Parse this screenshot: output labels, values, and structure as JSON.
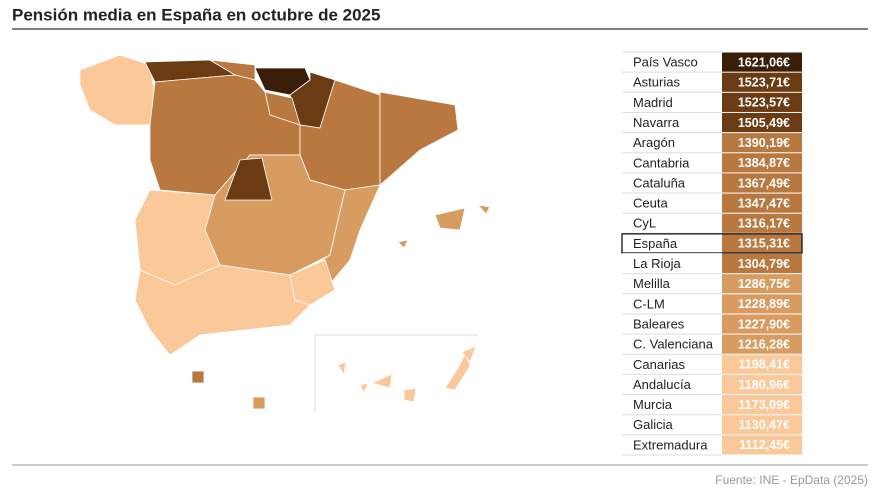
{
  "header": {
    "title": "Pensión media en España en octubre de 2025"
  },
  "table": {
    "rows": [
      {
        "region": "País Vasco",
        "value": "1621,06€",
        "color": "#3b1e08"
      },
      {
        "region": "Asturias",
        "value": "1523,71€",
        "color": "#6b3b13"
      },
      {
        "region": "Madrid",
        "value": "1523,57€",
        "color": "#6b3b13"
      },
      {
        "region": "Navarra",
        "value": "1505,49€",
        "color": "#6b3b13"
      },
      {
        "region": "Aragón",
        "value": "1390,19€",
        "color": "#b87840"
      },
      {
        "region": "Cantabria",
        "value": "1384,87€",
        "color": "#b87840"
      },
      {
        "region": "Cataluña",
        "value": "1367,49€",
        "color": "#b87840"
      },
      {
        "region": "Ceuta",
        "value": "1347,47€",
        "color": "#b87840"
      },
      {
        "region": "CyL",
        "value": "1316,17€",
        "color": "#b87840"
      },
      {
        "region": "España",
        "value": "1315,31€",
        "color": "#b87840",
        "highlight": true
      },
      {
        "region": "La Rioja",
        "value": "1304,79€",
        "color": "#b87840"
      },
      {
        "region": "Melilla",
        "value": "1286,75€",
        "color": "#d89b60"
      },
      {
        "region": "C-LM",
        "value": "1228,89€",
        "color": "#d89b60"
      },
      {
        "region": "Baleares",
        "value": "1227,90€",
        "color": "#d89b60"
      },
      {
        "region": "C. Valenciana",
        "value": "1216,28€",
        "color": "#d89b60"
      },
      {
        "region": "Canarias",
        "value": "1198,41€",
        "color": "#fbc89a"
      },
      {
        "region": "Andalucía",
        "value": "1180,96€",
        "color": "#fbc89a"
      },
      {
        "region": "Murcia",
        "value": "1173,09€",
        "color": "#fbc89a"
      },
      {
        "region": "Galicia",
        "value": "1130,47€",
        "color": "#fbc89a"
      },
      {
        "region": "Extremadura",
        "value": "1112,45€",
        "color": "#fbc89a"
      }
    ]
  },
  "footer": {
    "source": "Fuente: INE - EpData (2025)"
  }
}
